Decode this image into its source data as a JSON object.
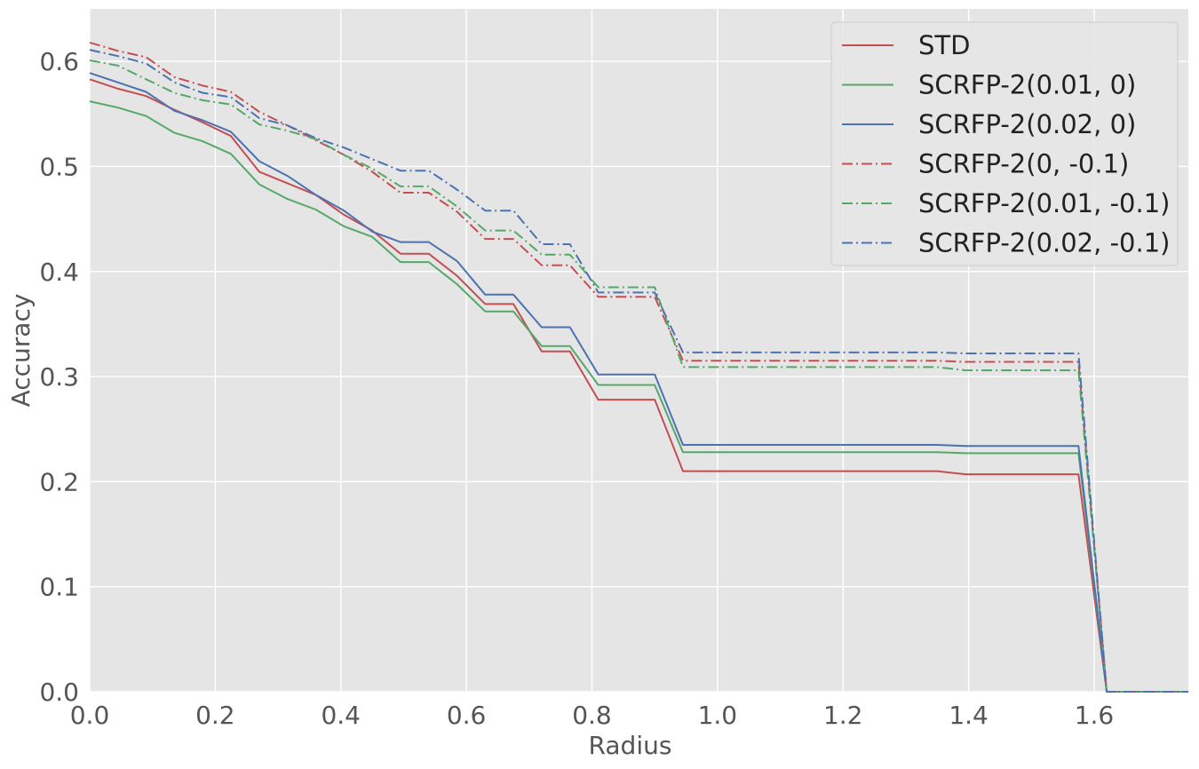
{
  "chart_data": {
    "type": "line",
    "title": "",
    "xlabel": "Radius",
    "ylabel": "Accuracy",
    "xlim": [
      0,
      1.75
    ],
    "ylim": [
      0,
      0.65
    ],
    "xticks": [
      "0.0",
      "0.2",
      "0.4",
      "0.6",
      "0.8",
      "1.0",
      "1.2",
      "1.4",
      "1.6"
    ],
    "yticks": [
      "0.0",
      "0.1",
      "0.2",
      "0.3",
      "0.4",
      "0.5",
      "0.6"
    ],
    "grid": true,
    "background": "#e5e5e5",
    "legend_position": "top-right",
    "x": [
      0.0,
      0.045,
      0.09,
      0.135,
      0.18,
      0.225,
      0.27,
      0.315,
      0.36,
      0.405,
      0.45,
      0.495,
      0.54,
      0.585,
      0.63,
      0.675,
      0.72,
      0.765,
      0.81,
      0.855,
      0.9,
      0.945,
      1.35,
      1.395,
      1.575,
      1.62,
      1.75
    ],
    "series": [
      {
        "name": "STD",
        "color": "#c44e52",
        "dash": "solid",
        "values": [
          0.583,
          0.574,
          0.567,
          0.554,
          0.542,
          0.529,
          0.495,
          0.484,
          0.473,
          0.454,
          0.439,
          0.417,
          0.417,
          0.396,
          0.369,
          0.369,
          0.324,
          0.324,
          0.278,
          0.278,
          0.278,
          0.21,
          0.21,
          0.207,
          0.207,
          0.0,
          0.0
        ]
      },
      {
        "name": "SCRFP-2(0.01, 0)",
        "color": "#55a868",
        "dash": "solid",
        "values": [
          0.562,
          0.556,
          0.548,
          0.532,
          0.524,
          0.512,
          0.483,
          0.469,
          0.459,
          0.443,
          0.433,
          0.409,
          0.409,
          0.388,
          0.362,
          0.362,
          0.329,
          0.329,
          0.292,
          0.292,
          0.292,
          0.228,
          0.228,
          0.227,
          0.227,
          0.0,
          0.0
        ]
      },
      {
        "name": "SCRFP-2(0.02, 0)",
        "color": "#4c72b0",
        "dash": "solid",
        "values": [
          0.589,
          0.58,
          0.571,
          0.553,
          0.544,
          0.533,
          0.505,
          0.491,
          0.473,
          0.458,
          0.438,
          0.428,
          0.428,
          0.41,
          0.378,
          0.378,
          0.347,
          0.347,
          0.302,
          0.302,
          0.302,
          0.235,
          0.235,
          0.234,
          0.234,
          0.0,
          0.0
        ]
      },
      {
        "name": "SCRFP-2(0, -0.1)",
        "color": "#c44e52",
        "dash": "dashdot",
        "values": [
          0.618,
          0.61,
          0.604,
          0.585,
          0.577,
          0.571,
          0.552,
          0.539,
          0.525,
          0.511,
          0.495,
          0.475,
          0.475,
          0.457,
          0.431,
          0.431,
          0.406,
          0.406,
          0.376,
          0.376,
          0.376,
          0.315,
          0.315,
          0.314,
          0.314,
          0.0,
          0.0
        ]
      },
      {
        "name": "SCRFP-2(0.01, -0.1)",
        "color": "#55a868",
        "dash": "dashdot",
        "values": [
          0.601,
          0.596,
          0.583,
          0.57,
          0.563,
          0.559,
          0.54,
          0.534,
          0.526,
          0.511,
          0.498,
          0.481,
          0.481,
          0.462,
          0.439,
          0.439,
          0.416,
          0.416,
          0.385,
          0.385,
          0.385,
          0.309,
          0.309,
          0.306,
          0.306,
          0.0,
          0.0
        ]
      },
      {
        "name": "SCRFP-2(0.02, -0.1)",
        "color": "#4c72b0",
        "dash": "dashdot",
        "values": [
          0.611,
          0.605,
          0.598,
          0.58,
          0.57,
          0.566,
          0.546,
          0.539,
          0.527,
          0.518,
          0.507,
          0.496,
          0.496,
          0.478,
          0.458,
          0.458,
          0.426,
          0.426,
          0.38,
          0.38,
          0.38,
          0.323,
          0.323,
          0.322,
          0.322,
          0.0,
          0.0
        ]
      }
    ]
  }
}
